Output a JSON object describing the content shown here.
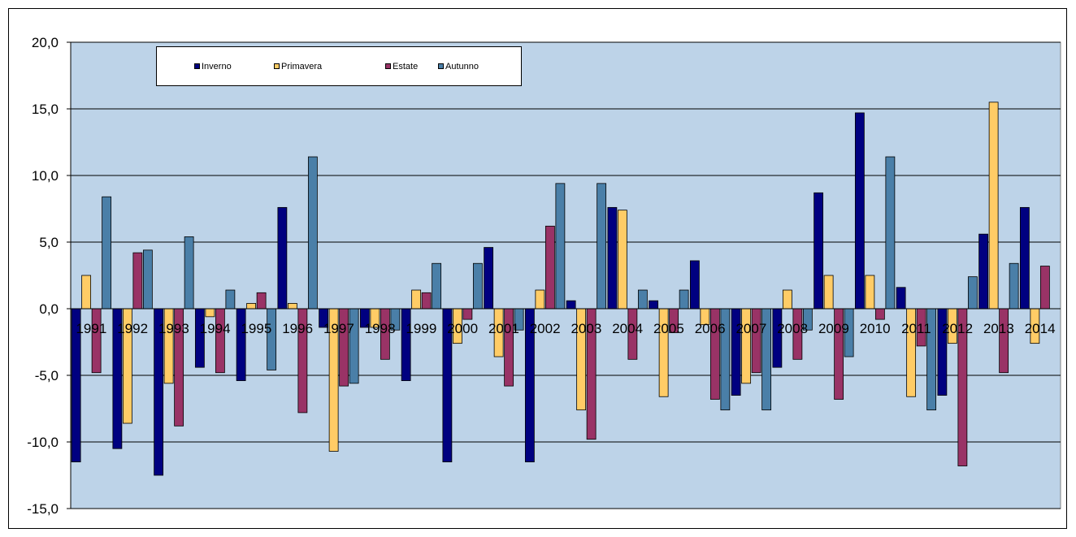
{
  "chart_data": {
    "type": "bar",
    "categories": [
      "1991",
      "1992",
      "1993",
      "1994",
      "1995",
      "1996",
      "1997",
      "1998",
      "1999",
      "2000",
      "2001",
      "2002",
      "2003",
      "2004",
      "2005",
      "2006",
      "2007",
      "2008",
      "2009",
      "2010",
      "2011",
      "2012",
      "2013",
      "2014"
    ],
    "series": [
      {
        "name": "Inverno",
        "color": "#000080",
        "values": [
          -11.5,
          -10.5,
          -12.5,
          -4.4,
          -5.4,
          7.6,
          -1.4,
          -1.4,
          -5.4,
          -11.5,
          4.6,
          -11.5,
          0.6,
          7.6,
          0.6,
          3.6,
          -6.5,
          -4.4,
          8.7,
          14.7,
          1.6,
          -6.5,
          5.6,
          7.6
        ]
      },
      {
        "name": "Primavera",
        "color": "#FFCC66",
        "values": [
          2.5,
          -8.6,
          -5.6,
          -0.6,
          0.4,
          0.4,
          -10.7,
          -1.4,
          1.4,
          -2.6,
          -3.6,
          1.4,
          -7.6,
          7.4,
          -6.6,
          -1.2,
          -5.6,
          1.4,
          2.5,
          2.5,
          -6.6,
          -2.6,
          15.5,
          -2.6
        ]
      },
      {
        "name": "Estate",
        "color": "#993366",
        "values": [
          -4.8,
          4.2,
          -8.8,
          -4.8,
          1.2,
          -7.8,
          -5.8,
          -3.8,
          1.2,
          -0.8,
          -5.8,
          6.2,
          -9.8,
          -3.8,
          -1.8,
          -6.8,
          -4.8,
          -3.8,
          -6.8,
          -0.8,
          -2.8,
          -11.8,
          -4.8,
          3.2
        ]
      },
      {
        "name": "Autunno",
        "color": "#4A7FA8",
        "values": [
          8.4,
          4.4,
          5.4,
          1.4,
          -4.6,
          11.4,
          -5.6,
          -1.6,
          3.4,
          3.4,
          -1.6,
          9.4,
          9.4,
          1.4,
          1.4,
          -7.6,
          -7.6,
          -1.6,
          -3.6,
          11.4,
          -7.6,
          2.4,
          3.4,
          null
        ]
      }
    ],
    "ylim": [
      -15,
      20
    ],
    "yticks": [
      "20,0",
      "15,0",
      "10,0",
      "5,0",
      "0,0",
      "-5,0",
      "-10,0",
      "-15,0"
    ],
    "ytick_values": [
      20,
      15,
      10,
      5,
      0,
      -5,
      -10,
      -15
    ],
    "plot_background": "#BDD3E8",
    "grid": true,
    "legend_position": "top-left",
    "title": "",
    "xlabel": "",
    "ylabel": ""
  }
}
